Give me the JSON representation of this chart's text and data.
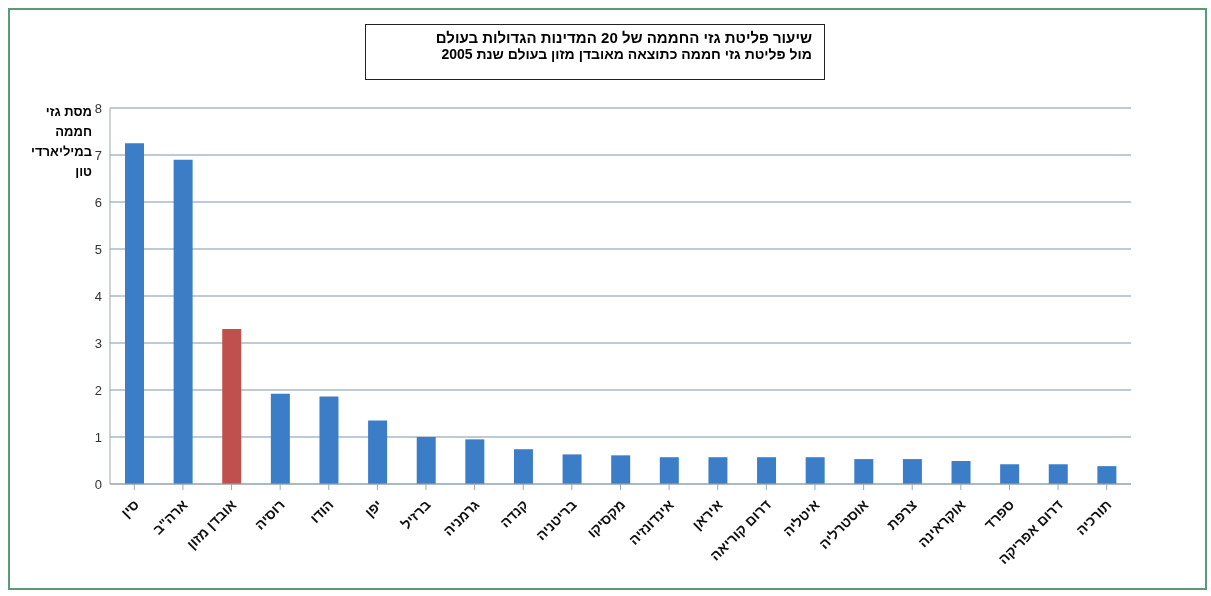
{
  "chart_data": {
    "type": "bar",
    "title": "שיעור פליטת גזי החממה של 20 המדינות הגדולות בעולם",
    "subtitle": "מול פליטת גזי חממה כתוצאה מאובדן מזון בעולם שנת 2005",
    "ylabel": "מסת גזי חממה במיליארדי טון",
    "categories": [
      "סין",
      "ארה\"ב",
      "אובדן מזון",
      "רוסיה",
      "הודו",
      "יפן",
      "ברזיל",
      "גרמניה",
      "קנדה",
      "בריטניה",
      "מקסיקו",
      "אינדונזיה",
      "איראן",
      "דרום קוריאה",
      "איטליה",
      "אוסטרליה",
      "צרפת",
      "אוקראינה",
      "ספרד",
      "דרום אפריקה",
      "תורכיה"
    ],
    "values": [
      7.25,
      6.9,
      3.3,
      1.92,
      1.86,
      1.35,
      1.0,
      0.95,
      0.74,
      0.63,
      0.61,
      0.57,
      0.57,
      0.57,
      0.57,
      0.53,
      0.53,
      0.49,
      0.42,
      0.42,
      0.38
    ],
    "colors": [
      "#3c7dc8",
      "#3c7dc8",
      "#c0504d",
      "#3c7dc8",
      "#3c7dc8",
      "#3c7dc8",
      "#3c7dc8",
      "#3c7dc8",
      "#3c7dc8",
      "#3c7dc8",
      "#3c7dc8",
      "#3c7dc8",
      "#3c7dc8",
      "#3c7dc8",
      "#3c7dc8",
      "#3c7dc8",
      "#3c7dc8",
      "#3c7dc8",
      "#3c7dc8",
      "#3c7dc8",
      "#3c7dc8"
    ],
    "ylim": [
      0,
      8
    ],
    "yticks": [
      0,
      1,
      2,
      3,
      4,
      5,
      6,
      7,
      8
    ],
    "grid": "y",
    "legend": false
  }
}
